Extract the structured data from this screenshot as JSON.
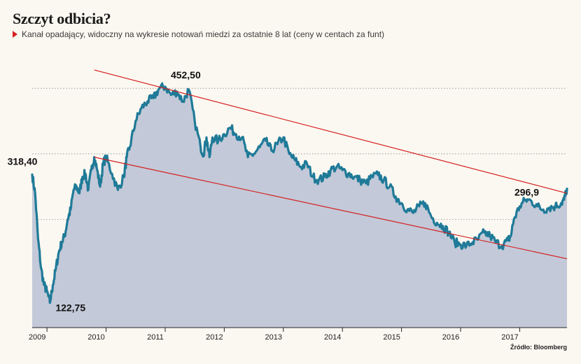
{
  "title": "Szczyt odbicia?",
  "subtitle": "Kanał opadający, widoczny na wykresie notowań miedzi za ostatnie 8 lat (ceny w centach za funt)",
  "source": "Źródło: Bloomberg",
  "colors": {
    "background": "#fbf8f1",
    "area_fill": "#c3c9d8",
    "series_line": "#1f7a98",
    "channel_line": "#d62020",
    "grid": "#8a8a8a",
    "subtitle_marker": "#d62020"
  },
  "chart_data": {
    "type": "line",
    "title": "Szczyt odbicia?",
    "xlabel": "",
    "ylabel": "",
    "xlim": [
      2008.75,
      2017.8
    ],
    "ylim": [
      85,
      510
    ],
    "grid": "horizontal dotted",
    "x_tick_labels": [
      "2009",
      "2010",
      "2011",
      "2012",
      "2013",
      "2014",
      "2015",
      "2016",
      "2017"
    ],
    "x_tick_values": [
      2009.0,
      2010.0,
      2011.0,
      2012.0,
      2013.0,
      2014.0,
      2015.0,
      2016.0,
      2017.0
    ],
    "series": [
      {
        "style": "area-line",
        "x": [
          2008.75,
          2008.8,
          2008.85,
          2008.9,
          2008.95,
          2009.0,
          2009.05,
          2009.1,
          2009.15,
          2009.2,
          2009.25,
          2009.3,
          2009.35,
          2009.4,
          2009.45,
          2009.5,
          2009.55,
          2009.6,
          2009.65,
          2009.7,
          2009.75,
          2009.8,
          2009.85,
          2009.9,
          2009.95,
          2010.0,
          2010.1,
          2010.2,
          2010.3,
          2010.35,
          2010.4,
          2010.5,
          2010.6,
          2010.7,
          2010.8,
          2010.9,
          2011.0,
          2011.1,
          2011.2,
          2011.3,
          2011.4,
          2011.5,
          2011.6,
          2011.65,
          2011.7,
          2011.75,
          2011.8,
          2011.9,
          2012.0,
          2012.1,
          2012.2,
          2012.3,
          2012.4,
          2012.5,
          2012.6,
          2012.7,
          2012.8,
          2012.9,
          2013.0,
          2013.1,
          2013.2,
          2013.3,
          2013.4,
          2013.5,
          2013.6,
          2013.7,
          2013.8,
          2013.9,
          2014.0,
          2014.1,
          2014.2,
          2014.3,
          2014.4,
          2014.5,
          2014.6,
          2014.7,
          2014.8,
          2014.9,
          2015.0,
          2015.1,
          2015.2,
          2015.3,
          2015.4,
          2015.5,
          2015.6,
          2015.7,
          2015.8,
          2015.9,
          2016.0,
          2016.1,
          2016.2,
          2016.3,
          2016.4,
          2016.5,
          2016.6,
          2016.7,
          2016.8,
          2016.85,
          2016.9,
          2017.0,
          2017.1,
          2017.2,
          2017.3,
          2017.4,
          2017.5,
          2017.6,
          2017.7,
          2017.75,
          2017.8
        ],
        "values": [
          318.4,
          290,
          220,
          175,
          150,
          140,
          122.75,
          150,
          175,
          200,
          215,
          225,
          250,
          265,
          295,
          300,
          290,
          315,
          320,
          295,
          325,
          345,
          325,
          300,
          335,
          345,
          320,
          295,
          315,
          345,
          360,
          400,
          420,
          430,
          435,
          450,
          452.5,
          440,
          445,
          430,
          448,
          400,
          360,
          350,
          375,
          345,
          375,
          370,
          380,
          390,
          380,
          375,
          345,
          350,
          360,
          370,
          355,
          365,
          375,
          350,
          340,
          330,
          335,
          315,
          310,
          315,
          325,
          330,
          325,
          320,
          315,
          310,
          305,
          315,
          318,
          310,
          300,
          285,
          275,
          265,
          260,
          270,
          275,
          255,
          245,
          240,
          230,
          215,
          212,
          210,
          215,
          220,
          230,
          225,
          215,
          210,
          218,
          225,
          250,
          270,
          280,
          278,
          270,
          265,
          268,
          270,
          275,
          280,
          296.9
        ]
      }
    ],
    "annotations": [
      {
        "text": "318,40",
        "x": 2008.75,
        "y": 318.4
      },
      {
        "text": "122,75",
        "x": 2009.05,
        "y": 122.75
      },
      {
        "text": "452,50",
        "x": 2011.0,
        "y": 452.5
      },
      {
        "text": "296,9",
        "x": 2017.8,
        "y": 296.9
      }
    ],
    "trendlines": [
      {
        "x": [
          2009.8,
          2017.8
        ],
        "values": [
          478,
          290
        ]
      },
      {
        "x": [
          2009.8,
          2017.8
        ],
        "values": [
          345,
          190
        ]
      }
    ]
  }
}
